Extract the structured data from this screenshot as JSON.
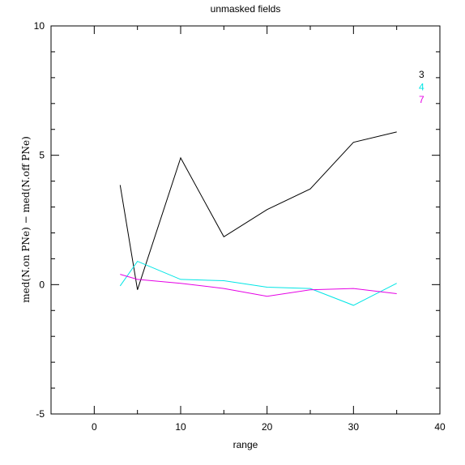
{
  "chart_data": {
    "type": "line",
    "title": "unmasked fields",
    "xlabel": "range",
    "ylabel": "med(N.on PNe) − med(N.off PNe)",
    "xlim": [
      -5,
      40
    ],
    "ylim": [
      -5,
      10
    ],
    "x_ticks": [
      0,
      10,
      20,
      30,
      40
    ],
    "y_ticks": [
      -5,
      0,
      5,
      10
    ],
    "x_tick_labels": [
      "0",
      "10",
      "20",
      "30",
      "40"
    ],
    "y_tick_labels": [
      "-5",
      "0",
      "5",
      "10"
    ],
    "grid": false,
    "legend_position": "top-right",
    "series": [
      {
        "name": "3",
        "color": "#000000",
        "x": [
          3,
          5,
          10,
          15,
          20,
          25,
          30,
          35
        ],
        "y": [
          3.85,
          -0.2,
          4.9,
          1.85,
          2.9,
          3.7,
          5.5,
          5.9
        ]
      },
      {
        "name": "4",
        "color": "#00e5e5",
        "x": [
          3,
          5,
          10,
          15,
          20,
          25,
          30,
          35
        ],
        "y": [
          -0.05,
          0.9,
          0.2,
          0.15,
          -0.1,
          -0.15,
          -0.8,
          0.05
        ]
      },
      {
        "name": "7",
        "color": "#e500e5",
        "x": [
          3,
          5,
          10,
          15,
          20,
          25,
          30,
          35
        ],
        "y": [
          0.4,
          0.2,
          0.05,
          -0.15,
          -0.45,
          -0.2,
          -0.15,
          -0.35
        ]
      }
    ]
  }
}
